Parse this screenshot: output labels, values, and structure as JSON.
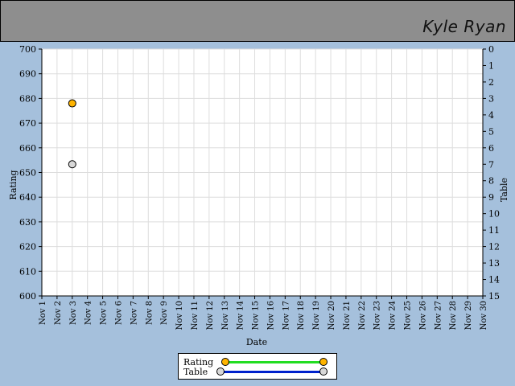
{
  "header": {
    "player_name": "Kyle Ryan",
    "background": "#8e8e8e"
  },
  "chart_data": {
    "type": "scatter",
    "xlabel": "Date",
    "ylabel_left": "Rating",
    "ylabel_right": "Table",
    "x_categories": [
      "Nov 1",
      "Nov 2",
      "Nov 3",
      "Nov 4",
      "Nov 5",
      "Nov 6",
      "Nov 7",
      "Nov 8",
      "Nov 9",
      "Nov 10",
      "Nov 11",
      "Nov 12",
      "Nov 13",
      "Nov 14",
      "Nov 15",
      "Nov 16",
      "Nov 17",
      "Nov 18",
      "Nov 19",
      "Nov 20",
      "Nov 21",
      "Nov 22",
      "Nov 23",
      "Nov 24",
      "Nov 25",
      "Nov 26",
      "Nov 27",
      "Nov 28",
      "Nov 29",
      "Nov 30"
    ],
    "ylim_left": [
      600,
      700
    ],
    "yticks_left": [
      700,
      690,
      680,
      670,
      660,
      650,
      640,
      630,
      620,
      610,
      600
    ],
    "ylim_right": [
      0,
      15
    ],
    "yticks_right": [
      0,
      1,
      2,
      3,
      4,
      5,
      6,
      7,
      8,
      9,
      10,
      11,
      12,
      13,
      14,
      15
    ],
    "grid": true,
    "series": [
      {
        "name": "Rating",
        "axis": "left",
        "color": "#ffb400",
        "line_color": "#22dd22",
        "points": [
          {
            "x": "Nov 3",
            "y": 678
          }
        ]
      },
      {
        "name": "Table",
        "axis": "right",
        "color": "#d8d8d8",
        "line_color": "#0022cc",
        "points": [
          {
            "x": "Nov 3",
            "y": 7
          }
        ]
      }
    ],
    "legend_position": "bottom-center"
  }
}
